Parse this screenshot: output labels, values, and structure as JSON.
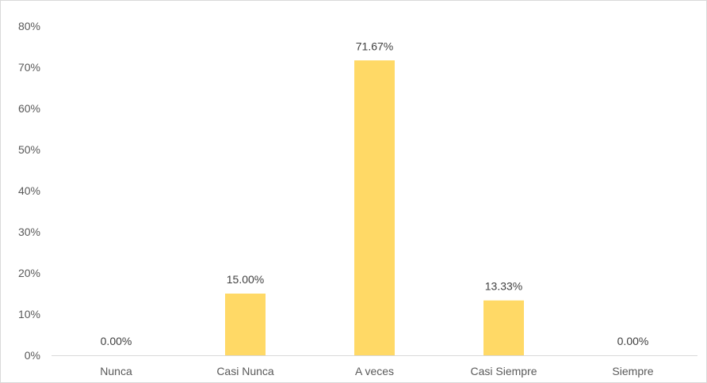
{
  "chart_data": {
    "type": "bar",
    "title": "",
    "xlabel": "",
    "ylabel": "",
    "categories": [
      "Nunca",
      "Casi Nunca",
      "A veces",
      "Casi Siempre",
      "Siempre"
    ],
    "values": [
      0.0,
      15.0,
      71.67,
      13.33,
      0.0
    ],
    "data_labels": [
      "0.00%",
      "15.00%",
      "71.67%",
      "13.33%",
      "0.00%"
    ],
    "ylim": [
      0,
      80
    ],
    "yticks": [
      0,
      10,
      20,
      30,
      40,
      50,
      60,
      70,
      80
    ],
    "ytick_labels": [
      "0%",
      "10%",
      "20%",
      "30%",
      "40%",
      "50%",
      "60%",
      "70%",
      "80%"
    ],
    "grid": false,
    "legend": "none",
    "colors": {
      "bar": "#FFD966",
      "axis": "#d9d9d9",
      "text": "#595959"
    }
  }
}
